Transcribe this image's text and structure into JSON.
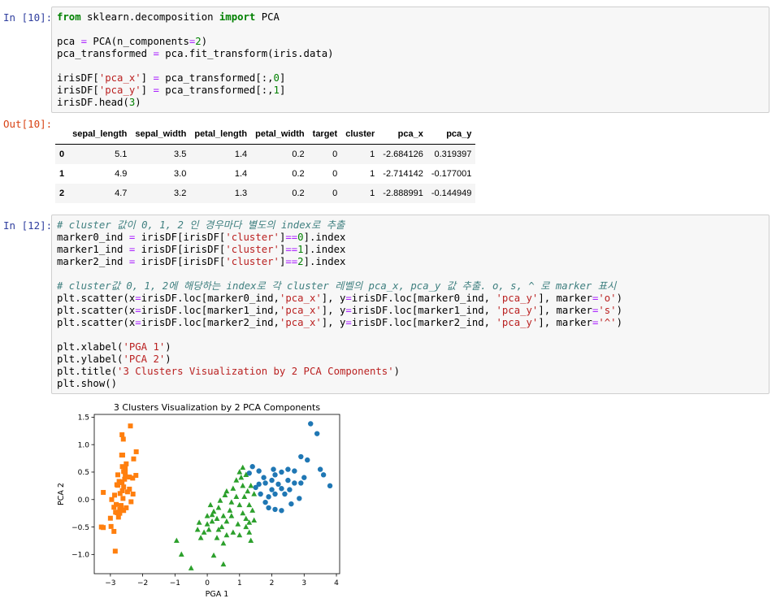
{
  "cells": [
    {
      "prompt": "In [10]:",
      "code_lines": [
        [
          {
            "t": "from",
            "c": "kw"
          },
          {
            "t": " sklearn.decomposition ",
            "c": ""
          },
          {
            "t": "import",
            "c": "kw"
          },
          {
            "t": " PCA",
            "c": ""
          }
        ],
        [],
        [
          {
            "t": "pca ",
            "c": ""
          },
          {
            "t": "=",
            "c": "op"
          },
          {
            "t": " PCA(n_components",
            "c": ""
          },
          {
            "t": "=",
            "c": "op"
          },
          {
            "t": "2",
            "c": "num"
          },
          {
            "t": ")",
            "c": ""
          }
        ],
        [
          {
            "t": "pca_transformed ",
            "c": ""
          },
          {
            "t": "=",
            "c": "op"
          },
          {
            "t": " pca.fit_transform(iris.data)",
            "c": ""
          }
        ],
        [],
        [
          {
            "t": "irisDF[",
            "c": ""
          },
          {
            "t": "'pca_x'",
            "c": "str"
          },
          {
            "t": "] ",
            "c": ""
          },
          {
            "t": "=",
            "c": "op"
          },
          {
            "t": " pca_transformed[:,",
            "c": ""
          },
          {
            "t": "0",
            "c": "num"
          },
          {
            "t": "]",
            "c": ""
          }
        ],
        [
          {
            "t": "irisDF[",
            "c": ""
          },
          {
            "t": "'pca_y'",
            "c": "str"
          },
          {
            "t": "] ",
            "c": ""
          },
          {
            "t": "=",
            "c": "op"
          },
          {
            "t": " pca_transformed[:,",
            "c": ""
          },
          {
            "t": "1",
            "c": "num"
          },
          {
            "t": "]",
            "c": ""
          }
        ],
        [
          {
            "t": "irisDF.head(",
            "c": ""
          },
          {
            "t": "3",
            "c": "num"
          },
          {
            "t": ")",
            "c": ""
          }
        ]
      ]
    },
    {
      "prompt": "In [12]:",
      "code_lines": [
        [
          {
            "t": "# cluster 값이 0, 1, 2 인 경우마다 별도의 index로 추출",
            "c": "cm"
          }
        ],
        [
          {
            "t": "marker0_ind ",
            "c": ""
          },
          {
            "t": "=",
            "c": "op"
          },
          {
            "t": " irisDF[irisDF[",
            "c": ""
          },
          {
            "t": "'cluster'",
            "c": "str"
          },
          {
            "t": "]",
            "c": ""
          },
          {
            "t": "==",
            "c": "op"
          },
          {
            "t": "0",
            "c": "num"
          },
          {
            "t": "].index",
            "c": ""
          }
        ],
        [
          {
            "t": "marker1_ind ",
            "c": ""
          },
          {
            "t": "=",
            "c": "op"
          },
          {
            "t": " irisDF[irisDF[",
            "c": ""
          },
          {
            "t": "'cluster'",
            "c": "str"
          },
          {
            "t": "]",
            "c": ""
          },
          {
            "t": "==",
            "c": "op"
          },
          {
            "t": "1",
            "c": "num"
          },
          {
            "t": "].index",
            "c": ""
          }
        ],
        [
          {
            "t": "marker2_ind ",
            "c": ""
          },
          {
            "t": "=",
            "c": "op"
          },
          {
            "t": " irisDF[irisDF[",
            "c": ""
          },
          {
            "t": "'cluster'",
            "c": "str"
          },
          {
            "t": "]",
            "c": ""
          },
          {
            "t": "==",
            "c": "op"
          },
          {
            "t": "2",
            "c": "num"
          },
          {
            "t": "].index",
            "c": ""
          }
        ],
        [],
        [
          {
            "t": "# cluster값 0, 1, 2에 해당하는 index로 각 cluster 레벨의 pca_x, pca_y 값 추출. o, s, ^ 로 marker 표시",
            "c": "cm"
          }
        ],
        [
          {
            "t": "plt.scatter(x",
            "c": ""
          },
          {
            "t": "=",
            "c": "op"
          },
          {
            "t": "irisDF.loc[marker0_ind,",
            "c": ""
          },
          {
            "t": "'pca_x'",
            "c": "str"
          },
          {
            "t": "], y",
            "c": ""
          },
          {
            "t": "=",
            "c": "op"
          },
          {
            "t": "irisDF.loc[marker0_ind, ",
            "c": ""
          },
          {
            "t": "'pca_y'",
            "c": "str"
          },
          {
            "t": "], marker",
            "c": ""
          },
          {
            "t": "=",
            "c": "op"
          },
          {
            "t": "'o'",
            "c": "str"
          },
          {
            "t": ")",
            "c": ""
          }
        ],
        [
          {
            "t": "plt.scatter(x",
            "c": ""
          },
          {
            "t": "=",
            "c": "op"
          },
          {
            "t": "irisDF.loc[marker1_ind,",
            "c": ""
          },
          {
            "t": "'pca_x'",
            "c": "str"
          },
          {
            "t": "], y",
            "c": ""
          },
          {
            "t": "=",
            "c": "op"
          },
          {
            "t": "irisDF.loc[marker1_ind, ",
            "c": ""
          },
          {
            "t": "'pca_y'",
            "c": "str"
          },
          {
            "t": "], marker",
            "c": ""
          },
          {
            "t": "=",
            "c": "op"
          },
          {
            "t": "'s'",
            "c": "str"
          },
          {
            "t": ")",
            "c": ""
          }
        ],
        [
          {
            "t": "plt.scatter(x",
            "c": ""
          },
          {
            "t": "=",
            "c": "op"
          },
          {
            "t": "irisDF.loc[marker2_ind,",
            "c": ""
          },
          {
            "t": "'pca_x'",
            "c": "str"
          },
          {
            "t": "], y",
            "c": ""
          },
          {
            "t": "=",
            "c": "op"
          },
          {
            "t": "irisDF.loc[marker2_ind, ",
            "c": ""
          },
          {
            "t": "'pca_y'",
            "c": "str"
          },
          {
            "t": "], marker",
            "c": ""
          },
          {
            "t": "=",
            "c": "op"
          },
          {
            "t": "'^'",
            "c": "str"
          },
          {
            "t": ")",
            "c": ""
          }
        ],
        [],
        [
          {
            "t": "plt.xlabel(",
            "c": ""
          },
          {
            "t": "'PGA 1'",
            "c": "str"
          },
          {
            "t": ")",
            "c": ""
          }
        ],
        [
          {
            "t": "plt.ylabel(",
            "c": ""
          },
          {
            "t": "'PCA 2'",
            "c": "str"
          },
          {
            "t": ")",
            "c": ""
          }
        ],
        [
          {
            "t": "plt.title(",
            "c": ""
          },
          {
            "t": "'3 Clusters Visualization by 2 PCA Components'",
            "c": "str"
          },
          {
            "t": ")",
            "c": ""
          }
        ],
        [
          {
            "t": "plt.show()",
            "c": ""
          }
        ]
      ]
    }
  ],
  "output": {
    "prompt": "Out[10]:",
    "columns": [
      "sepal_length",
      "sepal_width",
      "petal_length",
      "petal_width",
      "target",
      "cluster",
      "pca_x",
      "pca_y"
    ],
    "rows": [
      {
        "index": "0",
        "values": [
          "5.1",
          "3.5",
          "1.4",
          "0.2",
          "0",
          "1",
          "-2.684126",
          "0.319397"
        ]
      },
      {
        "index": "1",
        "values": [
          "4.9",
          "3.0",
          "1.4",
          "0.2",
          "0",
          "1",
          "-2.714142",
          "-0.177001"
        ]
      },
      {
        "index": "2",
        "values": [
          "4.7",
          "3.2",
          "1.3",
          "0.2",
          "0",
          "1",
          "-2.888991",
          "-0.144949"
        ]
      }
    ]
  },
  "chart_data": {
    "type": "scatter",
    "title": "3 Clusters Visualization by 2 PCA Components",
    "xlabel": "PGA 1",
    "ylabel": "PCA 2",
    "xlim": [
      -3.5,
      4.1
    ],
    "ylim": [
      -1.35,
      1.55
    ],
    "xticks": [
      "−3",
      "−2",
      "−1",
      "0",
      "1",
      "2",
      "3",
      "4"
    ],
    "xtick_values": [
      -3,
      -2,
      -1,
      0,
      1,
      2,
      3,
      4
    ],
    "yticks": [
      "1.5",
      "1.0",
      "0.5",
      "0.0",
      "−0.5",
      "−1.0"
    ],
    "ytick_values": [
      1.5,
      1.0,
      0.5,
      0.0,
      -0.5,
      -1.0
    ],
    "series": [
      {
        "marker": "o",
        "color": "#1f77b4",
        "points": [
          [
            3.2,
            1.38
          ],
          [
            3.4,
            1.2
          ],
          [
            2.9,
            0.78
          ],
          [
            3.1,
            0.72
          ],
          [
            3.5,
            0.55
          ],
          [
            3.6,
            0.45
          ],
          [
            3.8,
            0.25
          ],
          [
            3.0,
            0.4
          ],
          [
            2.7,
            0.52
          ],
          [
            2.5,
            0.55
          ],
          [
            2.3,
            0.5
          ],
          [
            2.1,
            0.45
          ],
          [
            2.0,
            0.35
          ],
          [
            1.8,
            0.3
          ],
          [
            1.6,
            0.28
          ],
          [
            1.5,
            0.22
          ],
          [
            1.65,
            0.1
          ],
          [
            1.9,
            0.05
          ],
          [
            2.1,
            0.1
          ],
          [
            2.3,
            0.2
          ],
          [
            2.5,
            0.35
          ],
          [
            2.7,
            0.3
          ],
          [
            2.9,
            0.3
          ],
          [
            2.2,
            0.28
          ],
          [
            2.0,
            0.18
          ],
          [
            1.8,
            -0.05
          ],
          [
            1.9,
            -0.15
          ],
          [
            2.1,
            -0.18
          ],
          [
            2.3,
            -0.2
          ],
          [
            2.6,
            -0.08
          ],
          [
            2.4,
            0.1
          ],
          [
            1.4,
            0.6
          ],
          [
            1.6,
            0.52
          ],
          [
            1.3,
            0.48
          ],
          [
            1.75,
            0.4
          ],
          [
            2.05,
            0.55
          ],
          [
            2.85,
            0.02
          ],
          [
            2.55,
            0.18
          ]
        ]
      },
      {
        "marker": "s",
        "color": "#ff7f0e",
        "points": [
          [
            -2.68,
            0.32
          ],
          [
            -2.71,
            -0.18
          ],
          [
            -2.89,
            -0.14
          ],
          [
            -2.75,
            -0.32
          ],
          [
            -2.73,
            0.33
          ],
          [
            -2.28,
            0.74
          ],
          [
            -2.82,
            -0.09
          ],
          [
            -2.63,
            0.16
          ],
          [
            -2.89,
            -0.58
          ],
          [
            -2.67,
            -0.11
          ],
          [
            -2.51,
            0.65
          ],
          [
            -2.61,
            0.02
          ],
          [
            -2.79,
            -0.24
          ],
          [
            -3.22,
            -0.51
          ],
          [
            -2.64,
            1.18
          ],
          [
            -2.38,
            1.34
          ],
          [
            -2.62,
            0.81
          ],
          [
            -2.65,
            0.31
          ],
          [
            -2.2,
            0.87
          ],
          [
            -2.59,
            0.51
          ],
          [
            -2.31,
            0.39
          ],
          [
            -2.54,
            0.43
          ],
          [
            -3.22,
            0.13
          ],
          [
            -2.3,
            0.1
          ],
          [
            -2.36,
            -0.04
          ],
          [
            -2.51,
            -0.15
          ],
          [
            -2.47,
            0.14
          ],
          [
            -2.56,
            0.37
          ],
          [
            -2.64,
            0.31
          ],
          [
            -2.63,
            -0.19
          ],
          [
            -2.59,
            -0.2
          ],
          [
            -2.41,
            0.41
          ],
          [
            -2.65,
            0.81
          ],
          [
            -2.6,
            1.1
          ],
          [
            -2.67,
            -0.11
          ],
          [
            -2.87,
            0.08
          ],
          [
            -2.63,
            0.6
          ],
          [
            -2.8,
            0.27
          ],
          [
            -2.98,
            -0.49
          ],
          [
            -2.59,
            0.23
          ],
          [
            -2.77,
            0.26
          ],
          [
            -2.85,
            -0.94
          ],
          [
            -3.0,
            -0.34
          ],
          [
            -2.41,
            0.19
          ],
          [
            -2.21,
            0.44
          ],
          [
            -2.71,
            -0.25
          ],
          [
            -2.54,
            0.5
          ],
          [
            -2.84,
            -0.23
          ],
          [
            -2.54,
            0.58
          ],
          [
            -2.7,
            0.11
          ],
          [
            -3.28,
            -0.5
          ],
          [
            -2.96,
            0.0
          ],
          [
            -2.77,
            0.45
          ]
        ]
      },
      {
        "marker": "^",
        "color": "#2ca02c",
        "points": [
          [
            -0.95,
            -0.75
          ],
          [
            -0.8,
            -1.0
          ],
          [
            -0.5,
            -1.25
          ],
          [
            0.5,
            -1.18
          ],
          [
            0.2,
            -1.02
          ],
          [
            -0.3,
            -0.55
          ],
          [
            -0.2,
            -0.7
          ],
          [
            -0.1,
            -0.6
          ],
          [
            0.05,
            -0.55
          ],
          [
            0.15,
            -0.4
          ],
          [
            0.3,
            -0.35
          ],
          [
            0.15,
            -0.28
          ],
          [
            0.0,
            -0.3
          ],
          [
            0.2,
            -0.22
          ],
          [
            0.35,
            -0.15
          ],
          [
            0.5,
            -0.3
          ],
          [
            0.45,
            -0.5
          ],
          [
            0.6,
            -0.4
          ],
          [
            0.7,
            -0.2
          ],
          [
            0.75,
            -0.05
          ],
          [
            0.55,
            0.08
          ],
          [
            0.6,
            0.15
          ],
          [
            0.8,
            0.2
          ],
          [
            0.9,
            0.35
          ],
          [
            1.0,
            0.5
          ],
          [
            1.1,
            0.58
          ],
          [
            1.05,
            0.4
          ],
          [
            0.9,
            0.05
          ],
          [
            1.0,
            -0.1
          ],
          [
            1.1,
            -0.25
          ],
          [
            1.2,
            -0.35
          ],
          [
            1.3,
            -0.42
          ],
          [
            1.45,
            -0.38
          ],
          [
            1.2,
            -0.5
          ],
          [
            1.3,
            -0.6
          ],
          [
            1.35,
            -0.75
          ],
          [
            1.0,
            -0.65
          ],
          [
            0.8,
            -0.6
          ],
          [
            0.6,
            -0.65
          ],
          [
            0.3,
            -0.7
          ],
          [
            0.5,
            -0.8
          ],
          [
            1.15,
            0.05
          ],
          [
            1.25,
            0.15
          ],
          [
            1.35,
            0.25
          ],
          [
            1.45,
            0.1
          ],
          [
            1.3,
            -0.1
          ],
          [
            1.1,
            0.25
          ],
          [
            0.95,
            -0.45
          ],
          [
            0.75,
            -0.3
          ],
          [
            -0.25,
            -0.42
          ],
          [
            0.1,
            -0.1
          ],
          [
            0.4,
            -0.02
          ],
          [
            1.2,
            0.45
          ],
          [
            0.35,
            -0.55
          ],
          [
            0.0,
            -0.45
          ],
          [
            1.4,
            -0.2
          ]
        ]
      }
    ]
  }
}
